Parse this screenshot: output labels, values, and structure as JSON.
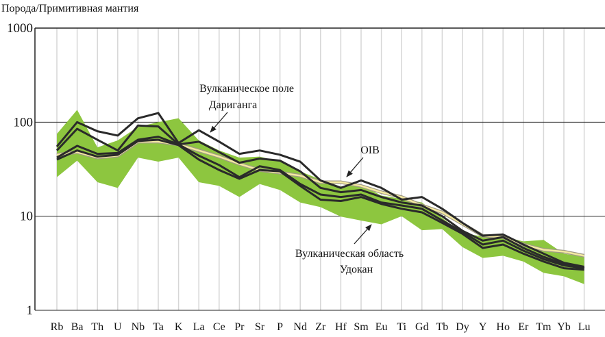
{
  "chart_data": {
    "type": "line",
    "ylabel": "Порода/Примитивная мантия",
    "yscale": "log",
    "ylim": [
      1,
      1000
    ],
    "yticks": [
      "1",
      "10",
      "100",
      "1000"
    ],
    "grid": true,
    "categories": [
      "Rb",
      "Ba",
      "Th",
      "U",
      "Nb",
      "Ta",
      "K",
      "La",
      "Ce",
      "Pr",
      "Sr",
      "P",
      "Nd",
      "Zr",
      "Hf",
      "Sm",
      "Eu",
      "Ti",
      "Gd",
      "Tb",
      "Dy",
      "Y",
      "Ho",
      "Er",
      "Tm",
      "Yb",
      "Lu"
    ],
    "field": {
      "color": "#8dc63f",
      "upper": [
        75,
        135,
        54,
        64,
        89,
        100,
        110,
        64,
        50,
        42,
        43,
        38,
        30,
        24.5,
        20.7,
        21.5,
        16.6,
        15.3,
        14,
        9.6,
        6.6,
        6.1,
        6.1,
        5.4,
        5.6,
        4.0,
        3.7
      ],
      "lower": [
        26,
        39,
        23,
        20,
        42,
        38,
        42,
        23,
        21,
        16,
        22,
        19,
        14,
        12.5,
        9.9,
        9.0,
        8.2,
        10,
        7.1,
        7.3,
        4.7,
        3.6,
        3.8,
        3.3,
        2.5,
        2.3,
        1.9
      ]
    },
    "oib": {
      "color": "#f3e9a0",
      "values": [
        45,
        48,
        42,
        44,
        62,
        62,
        58,
        50,
        43,
        36,
        31,
        29,
        27,
        23,
        23,
        21,
        18,
        16,
        13,
        11,
        8.3,
        6.2,
        6.0,
        5.0,
        4.4,
        4.2,
        3.8
      ]
    },
    "samples": [
      [
        55,
        100,
        80,
        72,
        110,
        125,
        60,
        82,
        62,
        46,
        50,
        45,
        38,
        24,
        20,
        24,
        20,
        15,
        16,
        12,
        8.5,
        6.2,
        6.4,
        5.0,
        4.0,
        3.2,
        2.9
      ],
      [
        50,
        85,
        65,
        50,
        92,
        90,
        58,
        62,
        48,
        37,
        41,
        39,
        30,
        20,
        18,
        19,
        16,
        14,
        13,
        10,
        7.0,
        5.5,
        6.0,
        4.6,
        3.7,
        3.1,
        2.8
      ],
      [
        42,
        56,
        46,
        47,
        65,
        70,
        58,
        44,
        35,
        26,
        34,
        31,
        22,
        17,
        16,
        17,
        14,
        13,
        12,
        9,
        6.8,
        5.0,
        5.5,
        4.3,
        3.5,
        3.0,
        2.8
      ],
      [
        40,
        50,
        43,
        45,
        63,
        65,
        57,
        40,
        31,
        25,
        31,
        30,
        21,
        15,
        14.5,
        16,
        13.5,
        12,
        11,
        8.5,
        6.5,
        4.6,
        5.0,
        4.0,
        3.3,
        2.8,
        2.7
      ]
    ],
    "annotations": {
      "dariganga": [
        "Вулканическое поле",
        "Дариганга"
      ],
      "oib": "OIB",
      "udokan": [
        "Вулканическая область",
        "Удокан"
      ]
    }
  }
}
